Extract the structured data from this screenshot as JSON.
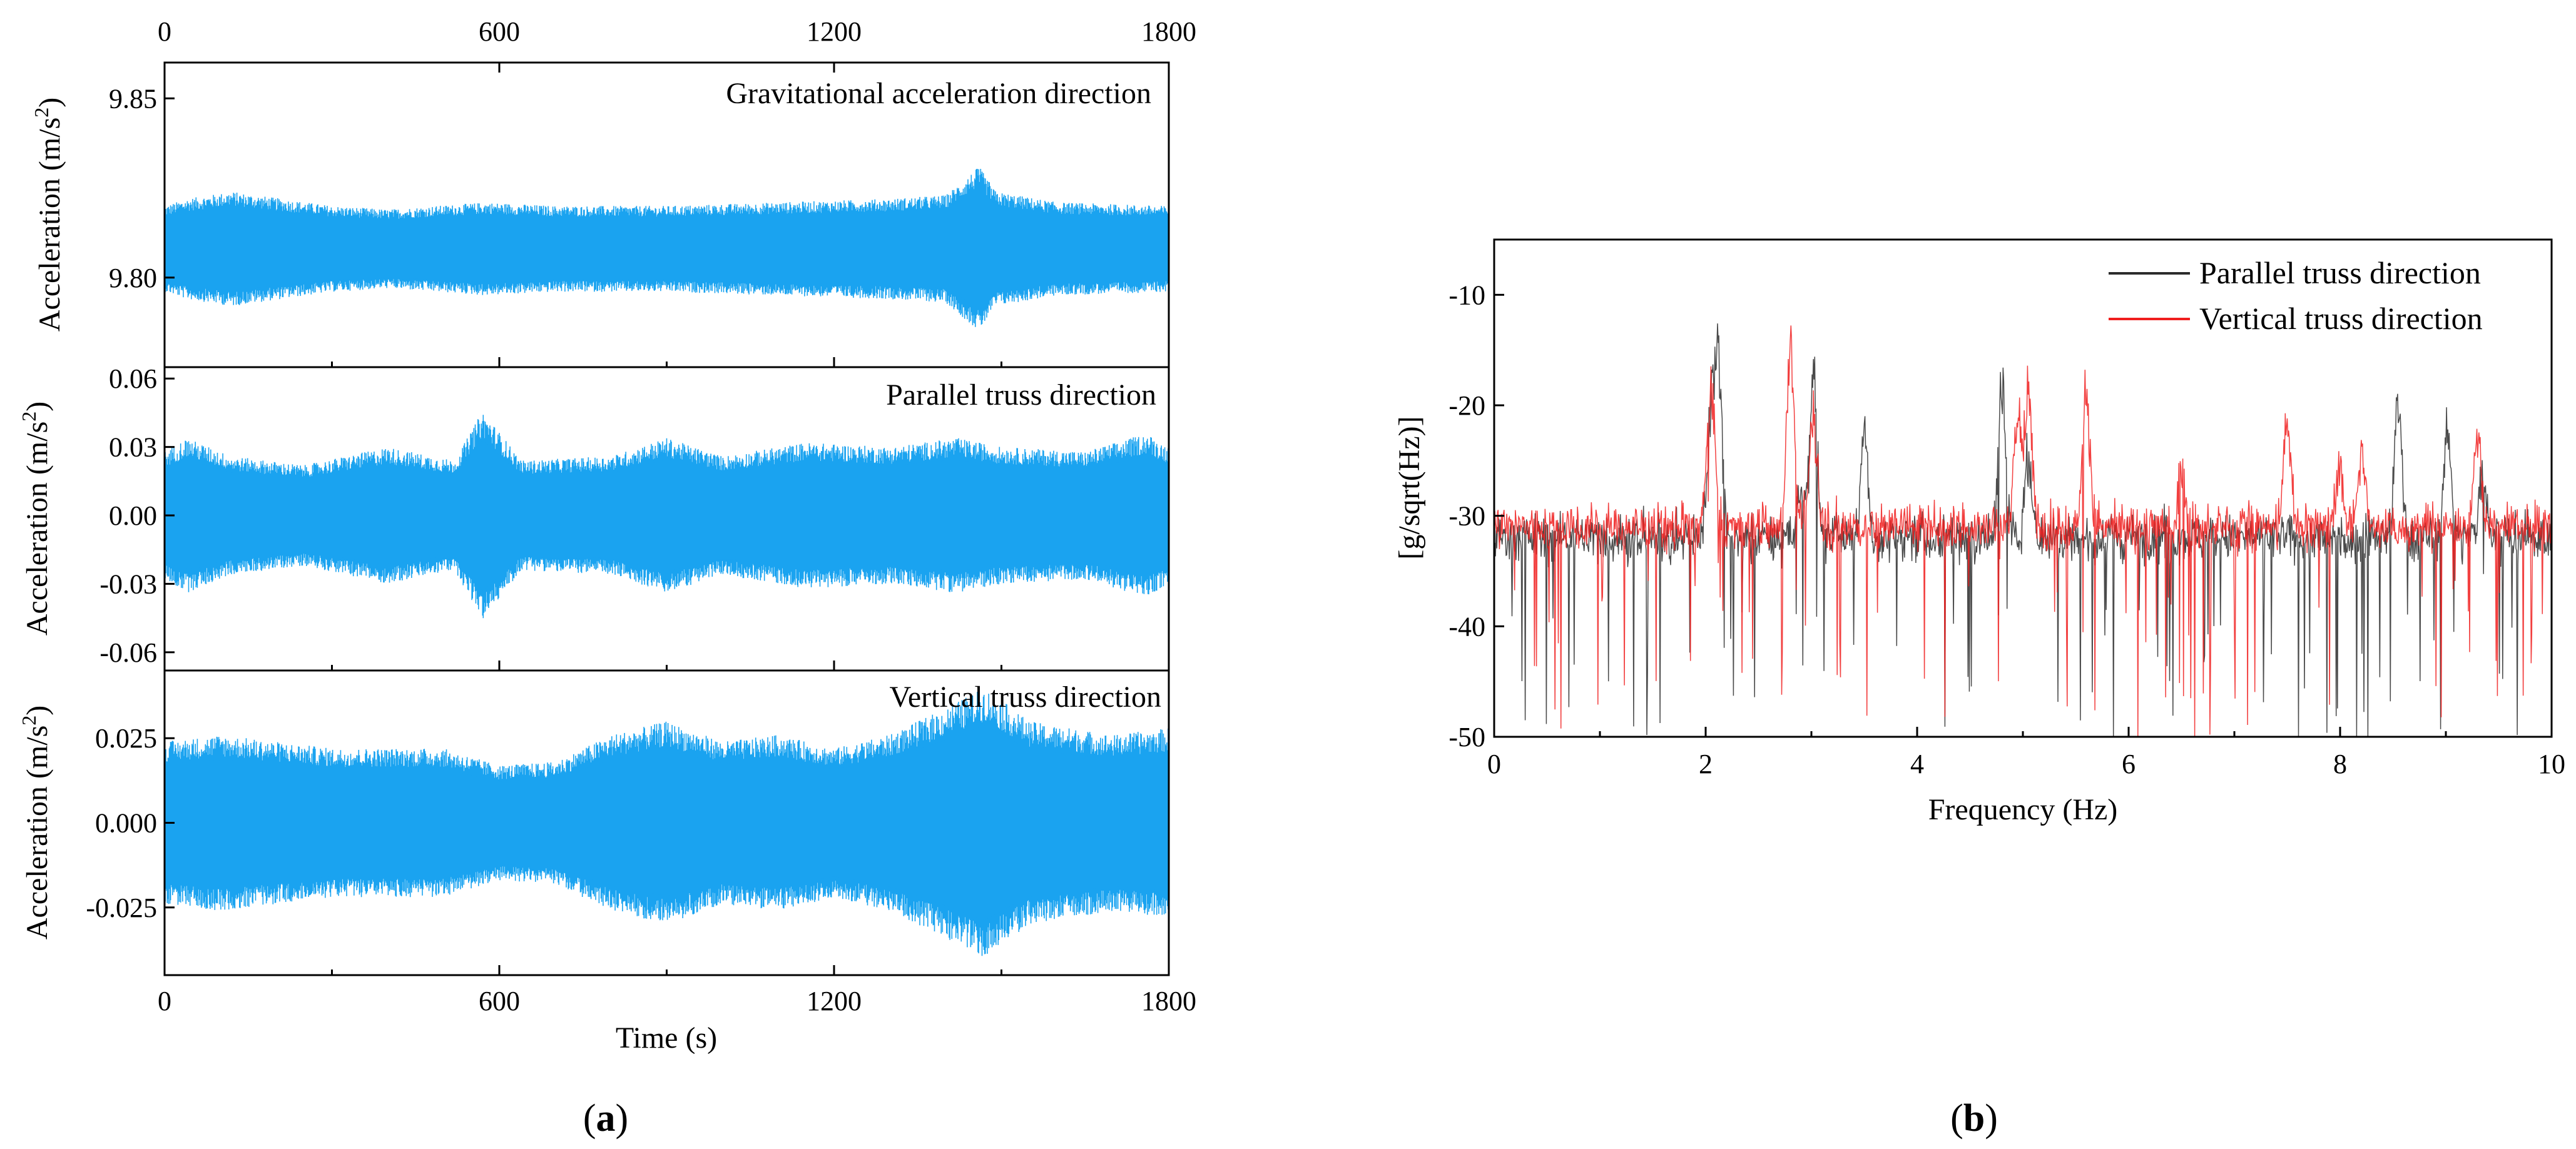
{
  "figure": {
    "caption_a": "(a)",
    "caption_a_letter": "a",
    "caption_b": "(b)",
    "caption_b_letter": "b"
  },
  "chart_data": [
    {
      "id": "a1",
      "type": "line",
      "title": "Gravitational acceleration direction",
      "xlabel": "Time (s)",
      "ylabel": "Acceleration (m/s²)",
      "xlim": [
        0,
        1800
      ],
      "ylim": [
        9.775,
        9.86
      ],
      "xticks": [
        "0",
        "600",
        "1200",
        "1800"
      ],
      "yticks": [
        "9.80",
        "9.85"
      ],
      "ytick_values": [
        9.8,
        9.85
      ],
      "series": [
        {
          "name": "Gravitational acceleration direction",
          "color": "#1aa3f0",
          "center": 9.808,
          "envelope": [
            [
              0,
              0.012
            ],
            [
              40,
              0.014
            ],
            [
              120,
              0.016
            ],
            [
              300,
              0.012
            ],
            [
              400,
              0.011
            ],
            [
              575,
              0.013
            ],
            [
              700,
              0.012
            ],
            [
              900,
              0.012
            ],
            [
              1100,
              0.013
            ],
            [
              1300,
              0.014
            ],
            [
              1400,
              0.015
            ],
            [
              1460,
              0.023
            ],
            [
              1490,
              0.016
            ],
            [
              1600,
              0.013
            ],
            [
              1800,
              0.012
            ]
          ]
        }
      ]
    },
    {
      "id": "a2",
      "type": "line",
      "title": "Parallel truss direction",
      "xlabel": "Time (s)",
      "ylabel": "Acceleration (m/s²)",
      "xlim": [
        0,
        1800
      ],
      "ylim": [
        -0.068,
        0.065
      ],
      "xticks": [
        "0",
        "600",
        "1200",
        "1800"
      ],
      "yticks": [
        "0.06",
        "0.03",
        "0.00",
        "-0.03",
        "-0.06"
      ],
      "ytick_values": [
        0.06,
        0.03,
        0.0,
        -0.03,
        -0.06
      ],
      "series": [
        {
          "name": "Parallel truss direction",
          "color": "#1aa3f0",
          "center": 0.0,
          "envelope": [
            [
              0,
              0.028
            ],
            [
              40,
              0.034
            ],
            [
              120,
              0.026
            ],
            [
              250,
              0.022
            ],
            [
              400,
              0.03
            ],
            [
              520,
              0.024
            ],
            [
              570,
              0.046
            ],
            [
              640,
              0.024
            ],
            [
              800,
              0.026
            ],
            [
              900,
              0.034
            ],
            [
              1000,
              0.026
            ],
            [
              1150,
              0.032
            ],
            [
              1300,
              0.03
            ],
            [
              1420,
              0.034
            ],
            [
              1500,
              0.03
            ],
            [
              1650,
              0.028
            ],
            [
              1760,
              0.036
            ],
            [
              1800,
              0.03
            ]
          ]
        }
      ]
    },
    {
      "id": "a3",
      "type": "line",
      "title": "Vertical truss direction",
      "xlabel": "Time (s)",
      "ylabel": "Acceleration (m/s²)",
      "xlim": [
        0,
        1800
      ],
      "ylim": [
        -0.045,
        0.045
      ],
      "xticks": [
        "0",
        "600",
        "1200",
        "1800"
      ],
      "yticks": [
        "0.025",
        "0.000",
        "-0.025"
      ],
      "ytick_values": [
        0.025,
        0.0,
        -0.025
      ],
      "series": [
        {
          "name": "Vertical truss direction",
          "color": "#1aa3f0",
          "center": 0.0,
          "envelope": [
            [
              0,
              0.024
            ],
            [
              100,
              0.026
            ],
            [
              300,
              0.022
            ],
            [
              500,
              0.022
            ],
            [
              600,
              0.017
            ],
            [
              700,
              0.018
            ],
            [
              800,
              0.026
            ],
            [
              900,
              0.03
            ],
            [
              1000,
              0.024
            ],
            [
              1100,
              0.026
            ],
            [
              1200,
              0.022
            ],
            [
              1300,
              0.026
            ],
            [
              1400,
              0.034
            ],
            [
              1470,
              0.04
            ],
            [
              1550,
              0.03
            ],
            [
              1700,
              0.026
            ],
            [
              1800,
              0.028
            ]
          ]
        }
      ]
    },
    {
      "id": "b",
      "type": "line",
      "title": "",
      "xlabel": "Frequency (Hz)",
      "ylabel": "[g/sqrt(Hz)]",
      "xlim": [
        0,
        10
      ],
      "ylim": [
        -50,
        -5
      ],
      "xticks": [
        "0",
        "2",
        "4",
        "6",
        "8",
        "10"
      ],
      "xtick_values": [
        0,
        2,
        4,
        6,
        8,
        10
      ],
      "yticks": [
        "-10",
        "-20",
        "-30",
        "-40",
        "-50"
      ],
      "ytick_values": [
        -10,
        -20,
        -30,
        -40,
        -50
      ],
      "legend_position": "top-right",
      "series": [
        {
          "name": "Parallel truss direction",
          "color": "#2b2b2b",
          "baseline": -32,
          "peaks": [
            [
              2.12,
              -13
            ],
            [
              2.05,
              -20
            ],
            [
              2.9,
              -27
            ],
            [
              3.02,
              -16
            ],
            [
              3.5,
              -21
            ],
            [
              4.8,
              -16
            ],
            [
              5.05,
              -24
            ],
            [
              8.55,
              -18
            ],
            [
              9.02,
              -21
            ],
            [
              9.35,
              -25
            ]
          ]
        },
        {
          "name": "Vertical truss direction",
          "color": "#f01e1e",
          "baseline": -31,
          "peaks": [
            [
              2.05,
              -16
            ],
            [
              2.8,
              -12
            ],
            [
              3.02,
              -19
            ],
            [
              4.95,
              -20
            ],
            [
              5.05,
              -17
            ],
            [
              5.6,
              -17
            ],
            [
              6.5,
              -25
            ],
            [
              7.5,
              -20
            ],
            [
              8.0,
              -25
            ],
            [
              8.2,
              -24
            ],
            [
              9.3,
              -21
            ]
          ]
        }
      ]
    }
  ]
}
